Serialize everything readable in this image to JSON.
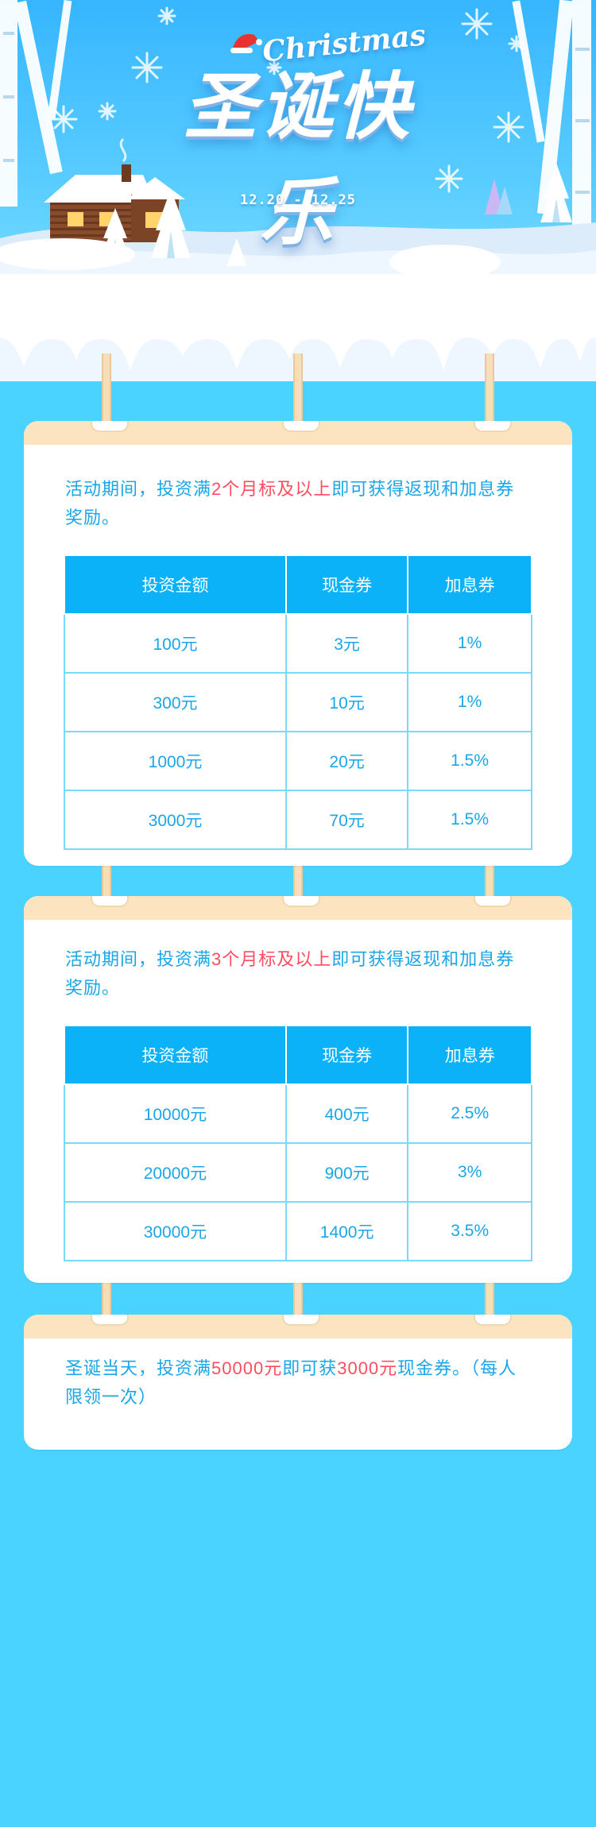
{
  "header": {
    "title_en": "Christmas",
    "title_cn": "圣诞快乐",
    "date_range": "12.20 - 12.25"
  },
  "cards": [
    {
      "text_parts": {
        "prefix": "活动期间，投资满",
        "highlight": "2个月标及以上",
        "suffix": "即可获得返现和加息券奖励。"
      },
      "table": {
        "headers": [
          "投资金额",
          "现金券",
          "加息券"
        ],
        "rows": [
          [
            "100元",
            "3元",
            "1%"
          ],
          [
            "300元",
            "10元",
            "1%"
          ],
          [
            "1000元",
            "20元",
            "1.5%"
          ],
          [
            "3000元",
            "70元",
            "1.5%"
          ]
        ]
      }
    },
    {
      "text_parts": {
        "prefix": "活动期间，投资满",
        "highlight": "3个月标及以上",
        "suffix": "即可获得返现和加息券奖励。"
      },
      "table": {
        "headers": [
          "投资金额",
          "现金券",
          "加息券"
        ],
        "rows": [
          [
            "10000元",
            "400元",
            "2.5%"
          ],
          [
            "20000元",
            "900元",
            "3%"
          ],
          [
            "30000元",
            "1400元",
            "3.5%"
          ]
        ]
      }
    },
    {
      "text_parts": {
        "prefix": "圣诞当天，投资满",
        "highlight": "50000元",
        "middle": "即可获",
        "highlight2": "3000元",
        "suffix": "现金券。（每人限领一次）"
      }
    }
  ],
  "colors": {
    "page_bg": "#49d3fe",
    "table_header_bg": "#0bb2f7",
    "text_blue": "#1aa6e8",
    "highlight_red": "#ff4c5e",
    "card_head": "#fde4c1"
  }
}
